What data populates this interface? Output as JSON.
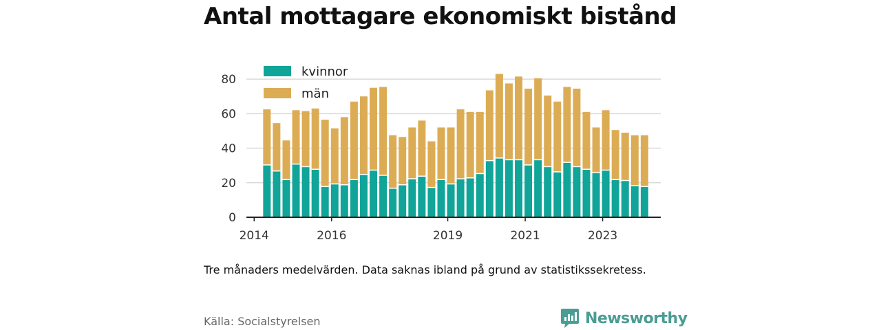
{
  "title": "Antal mottagare ekonomiskt bistånd",
  "note": "Tre månaders medelvärden. Data saknas ibland på grund av statistikssekretess.",
  "source": "Källa: Socialstyrelsen",
  "brand": {
    "name": "Newsworthy",
    "color": "#4a9d94",
    "icon": "newsworthy-bar-chart-logo-icon"
  },
  "colors": {
    "kvinnor": "#10a598",
    "man": "#dcac55",
    "grid": "#d9d9d9",
    "axis": "#222222"
  },
  "chart_data": {
    "type": "bar",
    "stacked": true,
    "title": "Antal mottagare ekonomiskt bistånd",
    "xlabel": "",
    "ylabel": "",
    "ylim": [
      0,
      90
    ],
    "yticks": [
      0,
      20,
      40,
      60,
      80
    ],
    "xlim": [
      2013.8,
      2024.5
    ],
    "xticks": [
      {
        "value": 2014,
        "label": "2014"
      },
      {
        "value": 2016,
        "label": "2016"
      },
      {
        "value": 2019,
        "label": "2019"
      },
      {
        "value": 2021,
        "label": "2021"
      },
      {
        "value": 2023,
        "label": "2023"
      }
    ],
    "grid": true,
    "legend_position": "top-left",
    "x": [
      2014.33,
      2014.58,
      2014.83,
      2015.08,
      2015.33,
      2015.58,
      2015.83,
      2016.08,
      2016.33,
      2016.58,
      2016.83,
      2017.08,
      2017.33,
      2017.58,
      2017.83,
      2018.08,
      2018.33,
      2018.58,
      2018.83,
      2019.08,
      2019.33,
      2019.58,
      2019.83,
      2020.08,
      2020.33,
      2020.58,
      2020.83,
      2021.08,
      2021.33,
      2021.58,
      2021.83,
      2022.08,
      2022.33,
      2022.58,
      2022.83,
      2023.08,
      2023.33,
      2023.58,
      2023.83,
      2024.08
    ],
    "series": [
      {
        "name": "kvinnor",
        "values": [
          30,
          26.5,
          21.5,
          30.5,
          29,
          27.5,
          17.5,
          19,
          18.5,
          21.5,
          24.5,
          27,
          24,
          16.5,
          18.5,
          22,
          23.5,
          17,
          21.5,
          19,
          22,
          22.5,
          25,
          32.5,
          34,
          33,
          33,
          30,
          33,
          29,
          26,
          31.5,
          29,
          27.5,
          25.5,
          27,
          21.5,
          21,
          18,
          17.5
        ]
      },
      {
        "name": "män",
        "values": [
          32.5,
          28,
          23,
          31.5,
          32.5,
          35.5,
          39,
          32.5,
          39.5,
          45.5,
          45.5,
          48,
          51.5,
          31,
          28,
          30,
          32.5,
          27,
          30.5,
          33,
          40.5,
          38.5,
          36,
          41,
          49,
          44.5,
          48.5,
          44.5,
          47.5,
          41.5,
          41,
          44,
          45.5,
          33.5,
          26.5,
          35,
          29,
          28,
          29.5,
          30
        ]
      }
    ]
  }
}
